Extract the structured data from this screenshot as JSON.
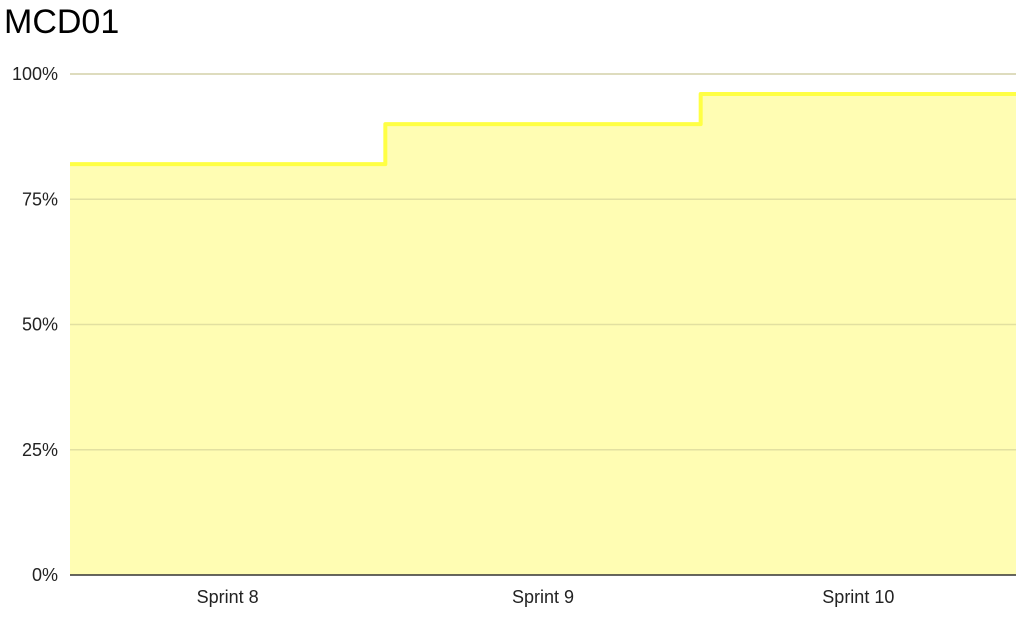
{
  "chart_data": {
    "type": "area",
    "step": true,
    "title": "MCD01",
    "xlabel": "",
    "ylabel": "",
    "categories": [
      "Sprint 8",
      "Sprint 9",
      "Sprint 10"
    ],
    "series": [
      {
        "values": [
          82,
          90,
          96
        ]
      }
    ],
    "ylim": [
      0,
      100
    ],
    "yticks": [
      0,
      25,
      50,
      75,
      100
    ],
    "ytick_labels": [
      "0%",
      "25%",
      "50%",
      "75%",
      "100%"
    ],
    "grid": true,
    "legend": "none",
    "colors": {
      "line": "#ffff44",
      "fill": "#fffdb3",
      "grid": "#d9d9d9",
      "axis": "#333333"
    }
  }
}
